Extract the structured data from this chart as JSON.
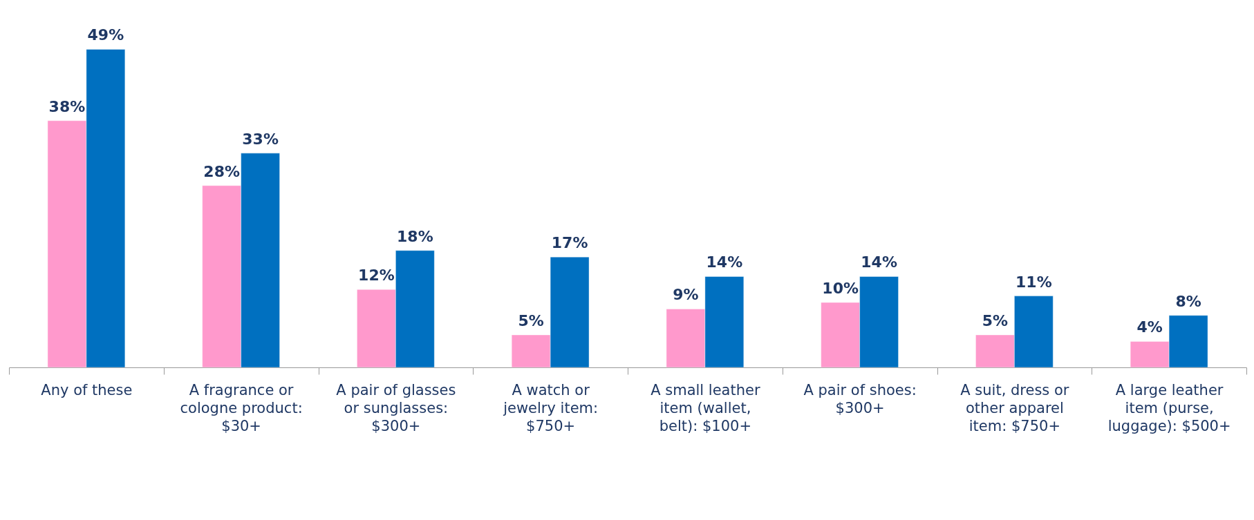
{
  "chart_data": {
    "type": "bar",
    "categories": [
      "Any of these",
      "A fragrance or cologne product: $30+",
      "A pair of glasses or sunglasses: $300+",
      "A watch or jewelry item: $750+",
      "A small leather item (wallet, belt): $100+",
      "A pair of shoes: $300+",
      "A suit, dress or other apparel item: $750+",
      "A large leather item (purse, luggage): $500+"
    ],
    "series": [
      {
        "color": "#ff99cc",
        "values": [
          38,
          28,
          12,
          5,
          9,
          10,
          5,
          4
        ],
        "value_labels": [
          "38%",
          "28%",
          "12%",
          "5%",
          "9%",
          "10%",
          "5%",
          "4%"
        ]
      },
      {
        "color": "#0070c0",
        "values": [
          49,
          33,
          18,
          17,
          14,
          14,
          11,
          8
        ],
        "value_labels": [
          "49%",
          "33%",
          "18%",
          "17%",
          "14%",
          "14%",
          "11%",
          "8%"
        ]
      }
    ],
    "grid": false,
    "legend": false
  }
}
